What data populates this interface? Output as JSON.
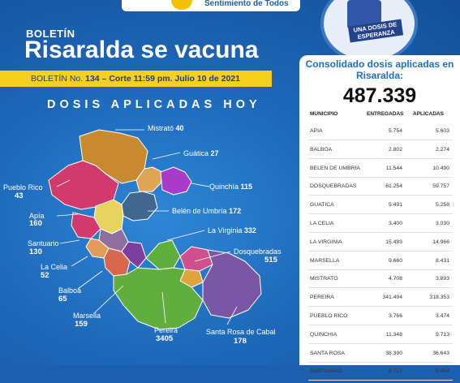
{
  "header": {
    "slogan": "Sentimiento de Todos",
    "boletin_label": "BOLETÍN",
    "title": "Risaralda se vacuna",
    "ribbon_prefix": "BOLETÍN   No. ",
    "ribbon_number": "134",
    "ribbon_suffix": " – Corte 11:59 pm. Julio 10 de 2021"
  },
  "badge": {
    "line1": "UNA DOSIS DE",
    "line2": "ESPERANZA"
  },
  "map": {
    "title": "DOSIS APLICADAS HOY",
    "municipalities": [
      {
        "name": "Mistrató",
        "value": "40"
      },
      {
        "name": "Guática",
        "value": "27"
      },
      {
        "name": "Pueblo Rico",
        "value": "43"
      },
      {
        "name": "Quinchía",
        "value": "115"
      },
      {
        "name": "Apía",
        "value": "160"
      },
      {
        "name": "Belén de Umbría",
        "value": "172"
      },
      {
        "name": "Santuario",
        "value": "130"
      },
      {
        "name": "La Virginia",
        "value": "332"
      },
      {
        "name": "Dosquebradas",
        "value": "515"
      },
      {
        "name": "La Celia",
        "value": "52"
      },
      {
        "name": "Balboa",
        "value": "65"
      },
      {
        "name": "Marsella",
        "value": "159"
      },
      {
        "name": "Pereira",
        "value": "3405"
      },
      {
        "name": "Santa Rosa de Cabal",
        "value": "178"
      }
    ],
    "colors": {
      "mistrato": "#c98a2f",
      "pueblo_rico": "#d23a6e",
      "guatica": "#e0a455",
      "quinchia": "#a83cc9",
      "belen": "#41668f",
      "apia": "#e9d25e",
      "santuario": "#8d6fa0",
      "la_virginia": "#7b3fa0",
      "la_celia": "#e59a55",
      "balboa": "#d9674e",
      "marsella": "#9b3f7a",
      "pereira": "#5fae3e",
      "dosquebradas": "#e2a43a",
      "santa_rosa": "#7a57a4"
    }
  },
  "panel": {
    "title": "Consolidado dosis aplicadas en Risaralda:",
    "total": "487.339",
    "columns": [
      "MUNICIPIO",
      "ENTREGADAS",
      "APLICADAS"
    ],
    "rows": [
      {
        "name": "APIA",
        "entregadas": "5.754",
        "aplicadas": "5.603"
      },
      {
        "name": "BALBOA",
        "entregadas": "2.802",
        "aplicadas": "2.274"
      },
      {
        "name": "BELEN DE UMBRIA",
        "entregadas": "11.544",
        "aplicadas": "10.490"
      },
      {
        "name": "DOSQUEBRADAS",
        "entregadas": "61.254",
        "aplicadas": "59.757"
      },
      {
        "name": "GUATICA",
        "entregadas": "5.491",
        "aplicadas": "5.258"
      },
      {
        "name": "LA CELIA",
        "entregadas": "3.400",
        "aplicadas": "3.030"
      },
      {
        "name": "LA VIRGINIA",
        "entregadas": "15.493",
        "aplicadas": "14.966"
      },
      {
        "name": "MARSELLA",
        "entregadas": "9.660",
        "aplicadas": "8.431"
      },
      {
        "name": "MISTRATO",
        "entregadas": "4.708",
        "aplicadas": "3.893"
      },
      {
        "name": "PEREIRA",
        "entregadas": "341.494",
        "aplicadas": "318.353"
      },
      {
        "name": "PUEBLO RICO",
        "entregadas": "3.766",
        "aplicadas": "3.474"
      },
      {
        "name": "QUINCHIA",
        "entregadas": "11.348",
        "aplicadas": "9.713"
      },
      {
        "name": "SANTA ROSA",
        "entregadas": "38.390",
        "aplicadas": "36.643"
      },
      {
        "name": "SANTUARIO",
        "entregadas": "5.727",
        "aplicadas": "5.454"
      }
    ]
  }
}
